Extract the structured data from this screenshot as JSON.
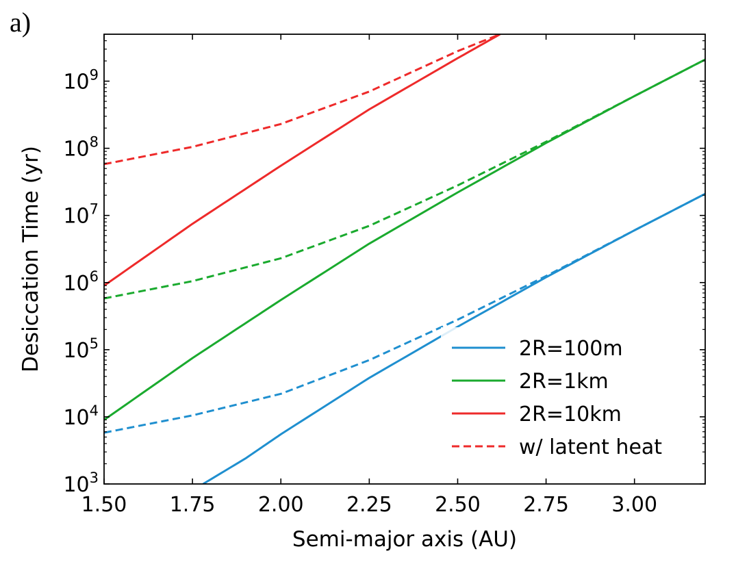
{
  "panel_label": "a)",
  "chart_data": {
    "type": "line",
    "title": "",
    "xlabel": "Semi-major axis (AU)",
    "ylabel": "Desiccation Time (yr)",
    "xlim": [
      1.5,
      3.2
    ],
    "ylim": [
      1000,
      5000000000
    ],
    "yscale": "log",
    "xticks": [
      "1.50",
      "1.75",
      "2.00",
      "2.25",
      "2.50",
      "2.75",
      "3.00"
    ],
    "yticks": [
      {
        "base": "10",
        "exp": "3",
        "value": 1000
      },
      {
        "base": "10",
        "exp": "4",
        "value": 10000
      },
      {
        "base": "10",
        "exp": "5",
        "value": 100000
      },
      {
        "base": "10",
        "exp": "6",
        "value": 1000000
      },
      {
        "base": "10",
        "exp": "7",
        "value": 10000000
      },
      {
        "base": "10",
        "exp": "8",
        "value": 100000000
      },
      {
        "base": "10",
        "exp": "9",
        "value": 1000000000
      }
    ],
    "grid": false,
    "legend_position": "lower-right",
    "series": [
      {
        "name": "2R=100m",
        "color": "#1f8fcf",
        "style": "solid",
        "x": [
          1.78,
          1.9,
          2.0,
          2.25,
          2.5,
          2.75,
          3.0,
          3.2
        ],
        "y": [
          1000,
          2400,
          5500,
          38000,
          220000,
          1200000,
          6000000,
          21000000
        ]
      },
      {
        "name": "2R=1km",
        "color": "#1aaa2e",
        "style": "solid",
        "x": [
          1.5,
          1.75,
          2.0,
          2.25,
          2.5,
          2.75,
          3.0,
          3.2
        ],
        "y": [
          9000,
          75000,
          550000,
          3800000,
          22000000,
          120000000,
          600000000,
          2100000000
        ]
      },
      {
        "name": "2R=10km",
        "color": "#ee2a2a",
        "style": "solid",
        "x": [
          1.5,
          1.75,
          2.0,
          2.25,
          2.5,
          2.62
        ],
        "y": [
          900000,
          7500000,
          55000000,
          380000000,
          2200000000,
          5000000000
        ]
      },
      {
        "name": "",
        "color": "#1f8fcf",
        "style": "dashed",
        "x": [
          1.5,
          1.75,
          2.0,
          2.25,
          2.5,
          2.75,
          3.0,
          3.2
        ],
        "y": [
          5800,
          10500,
          22000,
          70000,
          280000,
          1250000,
          6000000,
          21000000
        ]
      },
      {
        "name": "",
        "color": "#1aaa2e",
        "style": "dashed",
        "x": [
          1.5,
          1.75,
          2.0,
          2.25,
          2.5,
          2.75,
          3.0,
          3.2
        ],
        "y": [
          580000,
          1050000,
          2300000,
          7000000,
          28000000,
          125000000,
          600000000,
          2100000000
        ]
      },
      {
        "name": "",
        "color": "#ee2a2a",
        "style": "dashed",
        "x": [
          1.5,
          1.75,
          2.0,
          2.25,
          2.5,
          2.62
        ],
        "y": [
          58000000,
          105000000,
          230000000,
          700000000,
          2800000000,
          5000000000
        ]
      }
    ],
    "legend": [
      {
        "label": "2R=100m",
        "color": "#1f8fcf",
        "style": "solid"
      },
      {
        "label": "2R=1km",
        "color": "#1aaa2e",
        "style": "solid"
      },
      {
        "label": "2R=10km",
        "color": "#ee2a2a",
        "style": "solid"
      },
      {
        "label": "w/ latent heat",
        "color": "#ee2a2a",
        "style": "dashed"
      }
    ]
  }
}
